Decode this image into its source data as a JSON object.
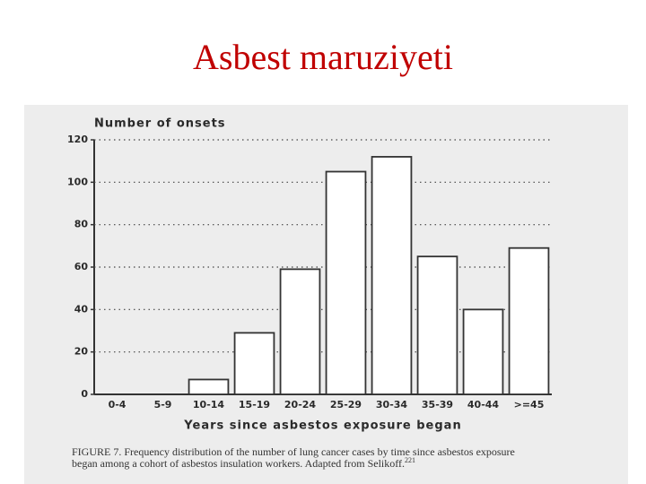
{
  "slide": {
    "title": "Asbest maruziyeti"
  },
  "chart_data": {
    "type": "bar",
    "y_label": "Number of onsets",
    "x_label": "Years since asbestos exposure began",
    "caption": [
      "FIGURE 7. Frequency distribution of the number of lung cancer cases by time since asbestos exposure",
      "began among a cohort of asbestos insulation workers. Adapted from Selikoff."
    ],
    "caption_ref": "221",
    "categories": [
      "0-4",
      "5-9",
      "10-14",
      "15-19",
      "20-24",
      "25-29",
      "30-34",
      "35-39",
      "40-44",
      ">=45"
    ],
    "values": [
      0,
      0,
      7,
      29,
      59,
      105,
      112,
      65,
      40,
      69
    ],
    "color": "#ffffff",
    "ylim": [
      0,
      120
    ],
    "yticks": [
      0,
      20,
      40,
      60,
      80,
      100,
      120
    ],
    "grid": true
  }
}
